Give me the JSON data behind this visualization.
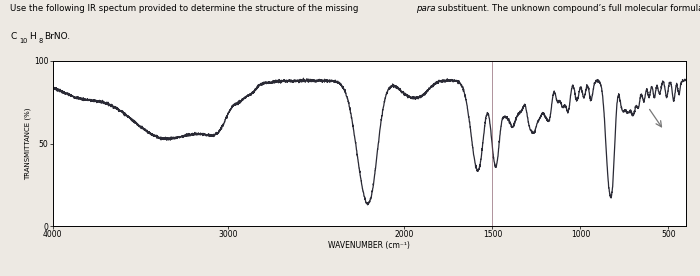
{
  "title_text": "Use the following IR spectum provided to determine the structure of the missing ",
  "title_italic": "para",
  "title_rest": " substituent. The unknown compound’s full molecular formula is",
  "formula_line": "C10H8BrNO.",
  "xlabel": "WAVENUMBER (cm⁻¹)",
  "ylabel": "TRANSMITTANCE (%)",
  "xlim": [
    4000,
    400
  ],
  "ylim": [
    0,
    100
  ],
  "yticks": [
    0,
    50,
    100
  ],
  "xticks": [
    4000,
    3000,
    2000,
    1500,
    1000,
    500
  ],
  "bg_color": "#ede9e3",
  "plot_bg": "#ffffff",
  "line_color": "#2a2a35",
  "line_width": 0.9,
  "cursor_color": "#7a4a5a"
}
